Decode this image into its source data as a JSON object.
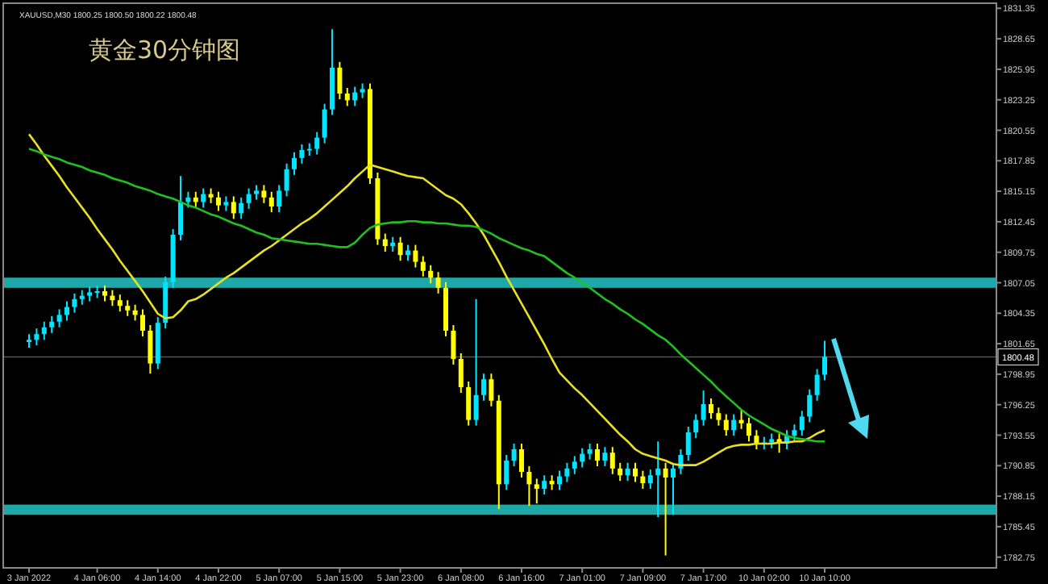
{
  "chart_data": {
    "type": "candlestick",
    "title": "黄金30分钟图",
    "annotations": [
      "XAUUSD,M30 1800.25 1800.50 1800.22 1800.48"
    ],
    "categories": [
      "3 Jan 2022",
      null,
      null,
      null,
      null,
      null,
      null,
      null,
      null,
      "4 Jan 06:00",
      null,
      null,
      null,
      null,
      null,
      null,
      null,
      "4 Jan 14:00",
      null,
      null,
      null,
      null,
      null,
      null,
      null,
      "4 Jan 22:00",
      null,
      null,
      null,
      null,
      null,
      null,
      null,
      "5 Jan 07:00",
      null,
      null,
      null,
      null,
      null,
      null,
      null,
      "5 Jan 15:00",
      null,
      null,
      null,
      null,
      null,
      null,
      null,
      "5 Jan 23:00",
      null,
      null,
      null,
      null,
      null,
      null,
      null,
      "6 Jan 08:00",
      null,
      null,
      null,
      null,
      null,
      null,
      null,
      "6 Jan 16:00",
      null,
      null,
      null,
      null,
      null,
      null,
      null,
      "7 Jan 01:00",
      null,
      null,
      null,
      null,
      null,
      null,
      null,
      "7 Jan 09:00",
      null,
      null,
      null,
      null,
      null,
      null,
      null,
      "7 Jan 17:00",
      null,
      null,
      null,
      null,
      null,
      null,
      null,
      "10 Jan 02:00",
      null,
      null,
      null,
      null,
      null,
      null,
      null,
      "10 Jan 10:00"
    ],
    "ohlc": [
      [
        1801.8,
        1802.5,
        1801.3,
        1802.0
      ],
      [
        1802.0,
        1803.0,
        1801.5,
        1802.5
      ],
      [
        1802.5,
        1803.6,
        1802.0,
        1803.1
      ],
      [
        1803.1,
        1804.1,
        1802.6,
        1803.6
      ],
      [
        1803.6,
        1804.7,
        1803.1,
        1804.2
      ],
      [
        1804.2,
        1805.4,
        1803.7,
        1804.9
      ],
      [
        1804.9,
        1806.1,
        1804.4,
        1805.6
      ],
      [
        1805.6,
        1806.4,
        1805.1,
        1805.9
      ],
      [
        1805.9,
        1806.7,
        1805.4,
        1806.2
      ],
      [
        1806.2,
        1806.8,
        1805.7,
        1806.3
      ],
      [
        1806.3,
        1806.8,
        1805.4,
        1805.9
      ],
      [
        1805.9,
        1806.4,
        1805.0,
        1805.5
      ],
      [
        1805.5,
        1806.0,
        1804.5,
        1805.0
      ],
      [
        1805.0,
        1805.5,
        1804.1,
        1804.6
      ],
      [
        1804.6,
        1805.1,
        1803.7,
        1804.2
      ],
      [
        1804.2,
        1804.7,
        1802.3,
        1802.8
      ],
      [
        1802.8,
        1803.3,
        1799.0,
        1799.9
      ],
      [
        1799.9,
        1804.0,
        1799.4,
        1803.5
      ],
      [
        1803.5,
        1807.6,
        1803.0,
        1807.1
      ],
      [
        1807.1,
        1811.8,
        1806.6,
        1811.3
      ],
      [
        1811.3,
        1816.5,
        1810.8,
        1814.2
      ],
      [
        1814.2,
        1815.1,
        1813.7,
        1814.6
      ],
      [
        1814.6,
        1815.1,
        1813.7,
        1814.2
      ],
      [
        1814.2,
        1815.4,
        1813.7,
        1814.9
      ],
      [
        1814.9,
        1815.4,
        1814.1,
        1814.6
      ],
      [
        1814.6,
        1815.1,
        1813.4,
        1813.9
      ],
      [
        1813.9,
        1814.7,
        1813.4,
        1814.2
      ],
      [
        1814.2,
        1814.7,
        1812.7,
        1813.2
      ],
      [
        1813.2,
        1814.6,
        1812.7,
        1814.1
      ],
      [
        1814.1,
        1815.4,
        1813.6,
        1814.9
      ],
      [
        1814.9,
        1815.7,
        1814.4,
        1815.2
      ],
      [
        1815.2,
        1815.7,
        1814.1,
        1814.6
      ],
      [
        1814.6,
        1815.1,
        1813.3,
        1813.8
      ],
      [
        1813.8,
        1815.7,
        1813.3,
        1815.2
      ],
      [
        1815.2,
        1817.6,
        1814.7,
        1817.1
      ],
      [
        1817.1,
        1818.6,
        1816.6,
        1818.1
      ],
      [
        1818.1,
        1819.3,
        1817.6,
        1818.8
      ],
      [
        1818.8,
        1819.4,
        1818.3,
        1818.9
      ],
      [
        1818.9,
        1820.4,
        1818.4,
        1819.9
      ],
      [
        1819.9,
        1822.9,
        1819.4,
        1822.4
      ],
      [
        1822.4,
        1829.5,
        1821.9,
        1826.1
      ],
      [
        1826.1,
        1826.6,
        1823.3,
        1823.8
      ],
      [
        1823.8,
        1824.3,
        1822.7,
        1823.2
      ],
      [
        1823.2,
        1824.4,
        1822.7,
        1823.9
      ],
      [
        1823.9,
        1824.7,
        1823.4,
        1824.2
      ],
      [
        1824.2,
        1824.7,
        1815.8,
        1816.3
      ],
      [
        1816.3,
        1816.8,
        1810.4,
        1810.9
      ],
      [
        1810.9,
        1811.4,
        1809.8,
        1810.3
      ],
      [
        1810.3,
        1811.1,
        1809.8,
        1810.6
      ],
      [
        1810.6,
        1811.1,
        1809.0,
        1809.5
      ],
      [
        1809.5,
        1810.4,
        1809.0,
        1809.9
      ],
      [
        1809.9,
        1810.4,
        1808.4,
        1808.9
      ],
      [
        1808.9,
        1809.4,
        1807.6,
        1808.1
      ],
      [
        1808.1,
        1808.6,
        1807.0,
        1807.5
      ],
      [
        1807.5,
        1808.0,
        1806.1,
        1806.6
      ],
      [
        1806.6,
        1807.1,
        1802.3,
        1802.8
      ],
      [
        1802.8,
        1803.3,
        1799.8,
        1800.3
      ],
      [
        1800.3,
        1800.8,
        1797.3,
        1797.8
      ],
      [
        1797.8,
        1798.3,
        1794.4,
        1794.9
      ],
      [
        1794.9,
        1805.6,
        1794.4,
        1797.1
      ],
      [
        1797.1,
        1799.0,
        1796.6,
        1798.5
      ],
      [
        1798.5,
        1799.0,
        1796.1,
        1796.6
      ],
      [
        1796.6,
        1797.1,
        1787.0,
        1789.2
      ],
      [
        1789.2,
        1791.8,
        1788.7,
        1791.3
      ],
      [
        1791.3,
        1792.8,
        1790.8,
        1792.3
      ],
      [
        1792.3,
        1792.8,
        1789.8,
        1790.3
      ],
      [
        1790.3,
        1790.8,
        1787.3,
        1789.2
      ],
      [
        1789.2,
        1789.7,
        1787.5,
        1788.8
      ],
      [
        1788.8,
        1790.0,
        1788.3,
        1789.5
      ],
      [
        1789.5,
        1790.0,
        1788.7,
        1789.2
      ],
      [
        1789.2,
        1790.4,
        1788.7,
        1789.9
      ],
      [
        1789.9,
        1791.1,
        1789.4,
        1790.6
      ],
      [
        1790.6,
        1791.7,
        1790.1,
        1791.2
      ],
      [
        1791.2,
        1792.4,
        1790.7,
        1791.9
      ],
      [
        1791.9,
        1792.8,
        1791.4,
        1792.3
      ],
      [
        1792.3,
        1792.8,
        1790.8,
        1791.3
      ],
      [
        1791.3,
        1792.5,
        1790.8,
        1792.0
      ],
      [
        1792.0,
        1792.5,
        1790.1,
        1790.6
      ],
      [
        1790.6,
        1791.1,
        1789.5,
        1790.0
      ],
      [
        1790.0,
        1791.1,
        1789.5,
        1790.6
      ],
      [
        1790.6,
        1791.1,
        1789.4,
        1789.9
      ],
      [
        1789.9,
        1790.4,
        1788.8,
        1789.3
      ],
      [
        1789.3,
        1790.5,
        1788.8,
        1790.0
      ],
      [
        1790.0,
        1793.0,
        1786.3,
        1790.6
      ],
      [
        1790.6,
        1791.1,
        1782.9,
        1789.8
      ],
      [
        1789.8,
        1791.1,
        1786.5,
        1790.6
      ],
      [
        1790.6,
        1792.3,
        1790.1,
        1791.8
      ],
      [
        1791.8,
        1794.3,
        1791.3,
        1793.8
      ],
      [
        1793.8,
        1795.4,
        1793.3,
        1794.9
      ],
      [
        1794.9,
        1797.5,
        1794.4,
        1796.3
      ],
      [
        1796.3,
        1796.8,
        1795.0,
        1795.5
      ],
      [
        1795.5,
        1796.0,
        1794.4,
        1794.9
      ],
      [
        1794.9,
        1795.4,
        1793.5,
        1794.0
      ],
      [
        1794.0,
        1795.4,
        1793.5,
        1794.9
      ],
      [
        1794.9,
        1795.8,
        1794.1,
        1794.6
      ],
      [
        1794.6,
        1795.1,
        1793.0,
        1793.5
      ],
      [
        1793.5,
        1794.0,
        1792.3,
        1792.8
      ],
      [
        1792.8,
        1793.4,
        1792.3,
        1792.9
      ],
      [
        1792.9,
        1793.7,
        1792.4,
        1793.2
      ],
      [
        1793.2,
        1793.7,
        1792.0,
        1792.8
      ],
      [
        1792.8,
        1794.0,
        1792.3,
        1793.5
      ],
      [
        1793.5,
        1794.5,
        1793.0,
        1794.0
      ],
      [
        1794.0,
        1795.7,
        1793.5,
        1795.2
      ],
      [
        1795.2,
        1797.6,
        1794.7,
        1797.1
      ],
      [
        1797.1,
        1799.4,
        1796.6,
        1798.9
      ],
      [
        1798.9,
        1801.9,
        1798.4,
        1800.5
      ]
    ],
    "colors": [
      "#00e5ff",
      "#00e5ff",
      "#00e5ff",
      "#00e5ff",
      "#00e5ff",
      "#00e5ff",
      "#00e5ff",
      "#00e5ff",
      "#00e5ff",
      "#00e5ff",
      "#ffff00",
      "#ffff00",
      "#ffff00",
      "#ffff00",
      "#ffff00",
      "#ffff00",
      "#ffff00",
      "#00e5ff",
      "#00e5ff",
      "#00e5ff",
      "#00e5ff",
      "#00e5ff",
      "#ffff00",
      "#00e5ff",
      "#ffff00",
      "#ffff00",
      "#00e5ff",
      "#ffff00",
      "#00e5ff",
      "#00e5ff",
      "#00e5ff",
      "#ffff00",
      "#ffff00",
      "#00e5ff",
      "#00e5ff",
      "#00e5ff",
      "#00e5ff",
      "#00e5ff",
      "#00e5ff",
      "#00e5ff",
      "#00e5ff",
      "#ffff00",
      "#ffff00",
      "#00e5ff",
      "#00e5ff",
      "#ffff00",
      "#ffff00",
      "#ffff00",
      "#00e5ff",
      "#ffff00",
      "#00e5ff",
      "#ffff00",
      "#ffff00",
      "#ffff00",
      "#ffff00",
      "#ffff00",
      "#ffff00",
      "#ffff00",
      "#ffff00",
      "#00e5ff",
      "#00e5ff",
      "#ffff00",
      "#ffff00",
      "#00e5ff",
      "#00e5ff",
      "#ffff00",
      "#ffff00",
      "#ffff00",
      "#00e5ff",
      "#ffff00",
      "#00e5ff",
      "#00e5ff",
      "#00e5ff",
      "#00e5ff",
      "#00e5ff",
      "#ffff00",
      "#00e5ff",
      "#ffff00",
      "#ffff00",
      "#00e5ff",
      "#ffff00",
      "#ffff00",
      "#00e5ff",
      "#00e5ff",
      "#ffff00",
      "#00e5ff",
      "#00e5ff",
      "#00e5ff",
      "#00e5ff",
      "#00e5ff",
      "#ffff00",
      "#ffff00",
      "#ffff00",
      "#00e5ff",
      "#ffff00",
      "#ffff00",
      "#ffff00",
      "#00e5ff",
      "#00e5ff",
      "#ffff00",
      "#00e5ff",
      "#00e5ff",
      "#00e5ff",
      "#00e5ff",
      "#00e5ff",
      "#00e5ff"
    ],
    "series": [
      {
        "type": "line",
        "color": "#e8e020",
        "values": [
          1820.2,
          1819.3,
          1818.3,
          1817.4,
          1816.5,
          1815.5,
          1814.6,
          1813.7,
          1812.8,
          1811.8,
          1810.9,
          1810.0,
          1809.0,
          1808.1,
          1807.2,
          1806.3,
          1805.3,
          1804.3,
          1803.9,
          1804.0,
          1804.6,
          1805.4,
          1805.6,
          1806.0,
          1806.5,
          1807.0,
          1807.5,
          1807.9,
          1808.4,
          1808.9,
          1809.4,
          1809.9,
          1810.3,
          1810.8,
          1811.3,
          1811.8,
          1812.3,
          1812.7,
          1813.2,
          1813.8,
          1814.4,
          1815.0,
          1815.6,
          1816.3,
          1816.9,
          1817.5,
          1817.3,
          1817.1,
          1816.9,
          1816.7,
          1816.5,
          1816.4,
          1816.3,
          1815.8,
          1815.3,
          1814.8,
          1814.5,
          1814.0,
          1813.2,
          1812.3,
          1811.3,
          1810.1,
          1808.9,
          1807.6,
          1806.4,
          1805.2,
          1804.0,
          1802.8,
          1801.6,
          1800.3,
          1799.1,
          1798.4,
          1797.7,
          1797.1,
          1796.4,
          1795.7,
          1795.0,
          1794.3,
          1793.6,
          1793.0,
          1792.3,
          1791.9,
          1791.7,
          1791.5,
          1791.3,
          1791.0,
          1790.9,
          1790.9,
          1790.9,
          1791.2,
          1791.6,
          1792.0,
          1792.4,
          1792.6,
          1792.7,
          1792.7,
          1792.8,
          1792.8,
          1792.8,
          1792.9,
          1792.9,
          1793.0,
          1793.0,
          1793.3,
          1793.7,
          1794.0
        ]
      },
      {
        "type": "line",
        "color": "#20c020",
        "values": [
          1818.9,
          1818.7,
          1818.4,
          1818.2,
          1818.0,
          1817.7,
          1817.5,
          1817.3,
          1817.0,
          1816.8,
          1816.6,
          1816.3,
          1816.1,
          1815.9,
          1815.6,
          1815.4,
          1815.2,
          1814.9,
          1814.7,
          1814.5,
          1814.2,
          1813.9,
          1813.7,
          1813.4,
          1813.1,
          1812.9,
          1812.6,
          1812.3,
          1812.1,
          1811.8,
          1811.5,
          1811.3,
          1811.0,
          1810.9,
          1810.8,
          1810.7,
          1810.6,
          1810.5,
          1810.5,
          1810.4,
          1810.3,
          1810.2,
          1810.2,
          1810.6,
          1811.3,
          1811.9,
          1812.2,
          1812.3,
          1812.4,
          1812.4,
          1812.5,
          1812.5,
          1812.4,
          1812.4,
          1812.3,
          1812.3,
          1812.2,
          1812.1,
          1812.1,
          1812.0,
          1811.7,
          1811.4,
          1811.0,
          1810.7,
          1810.4,
          1810.1,
          1809.9,
          1809.6,
          1809.4,
          1808.9,
          1808.4,
          1807.9,
          1807.5,
          1807.0,
          1806.6,
          1806.1,
          1805.6,
          1805.2,
          1804.7,
          1804.3,
          1803.8,
          1803.4,
          1802.9,
          1802.4,
          1802.0,
          1801.4,
          1800.7,
          1800.1,
          1799.5,
          1798.9,
          1798.3,
          1797.6,
          1797.0,
          1796.4,
          1795.8,
          1795.3,
          1794.9,
          1794.5,
          1794.1,
          1793.8,
          1793.5,
          1793.3,
          1793.2,
          1793.1,
          1793.0,
          1793.0
        ]
      }
    ],
    "ylim": [
      1781.8,
      1831.8
    ],
    "yticks": [
      1831.35,
      1828.65,
      1825.95,
      1823.25,
      1820.55,
      1817.85,
      1815.15,
      1812.45,
      1809.75,
      1807.05,
      1804.35,
      1801.65,
      1798.95,
      1796.25,
      1793.55,
      1790.85,
      1788.15,
      1785.45,
      1782.75
    ],
    "bands": [
      {
        "axis": "y",
        "from": 1806.6,
        "to": 1807.5,
        "label": null,
        "color": "#1fa8a8"
      },
      {
        "axis": "y",
        "from": 1786.5,
        "to": 1787.4,
        "label": null,
        "color": "#1fa8a8"
      }
    ],
    "ref_lines": [
      {
        "axis": "y",
        "value": 1800.48,
        "label": "1800.48",
        "color": "#555555"
      }
    ]
  }
}
